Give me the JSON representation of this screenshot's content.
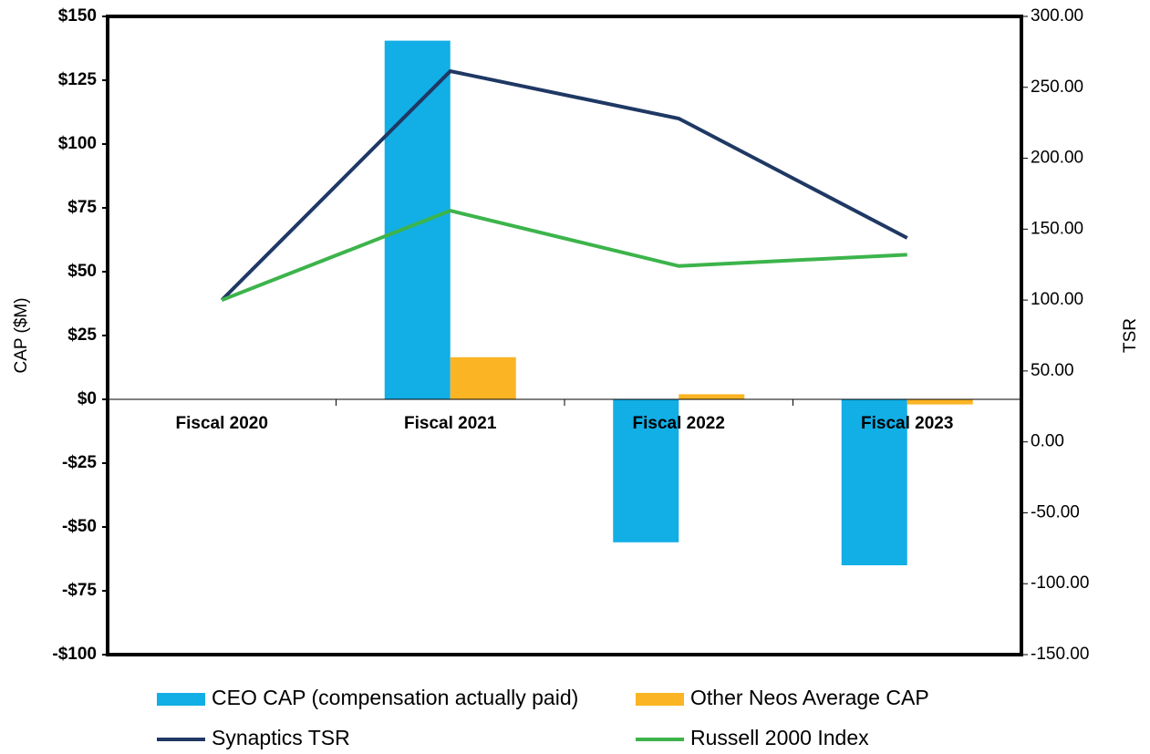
{
  "chart_data": {
    "type": "bar-line",
    "categories": [
      "Fiscal 2020",
      "Fiscal 2021",
      "Fiscal 2022",
      "Fiscal 2023"
    ],
    "ylabel": "CAP ($M)",
    "y2label": "TSR",
    "ylim": [
      -100,
      150
    ],
    "yticks": [
      {
        "value": -100,
        "label": "-$100"
      },
      {
        "value": -75,
        "label": "-$75"
      },
      {
        "value": -50,
        "label": "-$50"
      },
      {
        "value": -25,
        "label": "-$25"
      },
      {
        "value": 0,
        "label": "$0"
      },
      {
        "value": 25,
        "label": "$25"
      },
      {
        "value": 50,
        "label": "$50"
      },
      {
        "value": 75,
        "label": "$75"
      },
      {
        "value": 100,
        "label": "$100"
      },
      {
        "value": 125,
        "label": "$125"
      },
      {
        "value": 150,
        "label": "$150"
      }
    ],
    "y2lim": [
      -150,
      300
    ],
    "y2ticks": [
      {
        "value": -150,
        "label": "-150.00"
      },
      {
        "value": -100,
        "label": "-100.00"
      },
      {
        "value": -50,
        "label": "-50.00"
      },
      {
        "value": 0,
        "label": "0.00"
      },
      {
        "value": 50,
        "label": "50.00"
      },
      {
        "value": 100,
        "label": "100.00"
      },
      {
        "value": 150,
        "label": "150.00"
      },
      {
        "value": 200,
        "label": "200.00"
      },
      {
        "value": 250,
        "label": "250.00"
      },
      {
        "value": 300,
        "label": "300.00"
      }
    ],
    "series": [
      {
        "name": "CEO CAP (compensation actually paid)",
        "kind": "bar",
        "color": "#12aee6",
        "values": [
          null,
          140.5,
          -56,
          -65
        ]
      },
      {
        "name": "Other Neos Average CAP",
        "kind": "bar",
        "color": "#fbb424",
        "values": [
          null,
          16.5,
          2,
          -2
        ]
      },
      {
        "name": "Synaptics TSR",
        "kind": "line",
        "axis": "y2",
        "color": "#1f3864",
        "values": [
          100,
          261.4,
          228,
          143.8
        ]
      },
      {
        "name": "Russell 2000 Index",
        "kind": "line",
        "axis": "y2",
        "color": "#3cb44b",
        "values": [
          100,
          163,
          124,
          132
        ]
      }
    ]
  }
}
